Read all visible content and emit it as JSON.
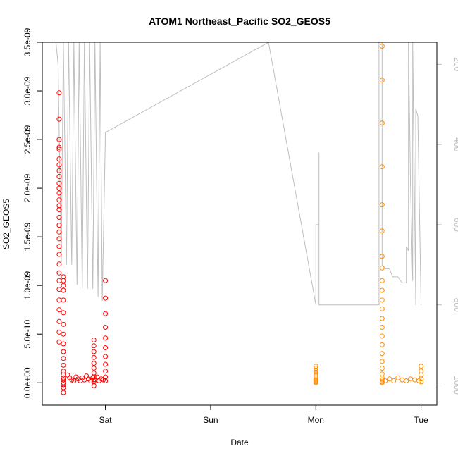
{
  "chart_data": {
    "type": "scatter",
    "title": "ATOM1 Northeast_Pacific SO2_GEOS5",
    "xlabel": "Date",
    "ylabel": "SO2_GEOS5",
    "x_ticks": [
      "Sat",
      "Sun",
      "Mon",
      "Tue"
    ],
    "y_ticks": [
      "0.0e+00",
      "5.0e-10",
      "1.0e-09",
      "1.5e-09",
      "2.0e-09",
      "2.5e-09",
      "3.0e-09",
      "3.5e-09"
    ],
    "y_tick_values": [
      0,
      5e-10,
      1e-09,
      1.5e-09,
      2e-09,
      2.5e-09,
      3e-09,
      3.5e-09
    ],
    "ylim": [
      -2.3e-10,
      3.5e-09
    ],
    "x_domain_days": [
      -0.6,
      3.15
    ],
    "x_tick_days": [
      0,
      1,
      2,
      3
    ],
    "right_axis": {
      "label": "",
      "ticks": [
        "200",
        "400",
        "600",
        "800",
        "1000"
      ],
      "tick_values": [
        200,
        400,
        600,
        800,
        1000
      ],
      "range_top_to_bottom": [
        145,
        1050
      ],
      "color": "#bebebe"
    },
    "colors": {
      "series_red": "#ff0000",
      "series_orange": "#ff8c00",
      "pressure_line": "#bebebe",
      "axis": "#000000"
    },
    "series": [
      {
        "color": "#ff0000",
        "x": [
          -0.44,
          -0.44,
          -0.44,
          -0.44,
          -0.44,
          -0.44,
          -0.44,
          -0.44,
          -0.44,
          -0.44,
          -0.44,
          -0.44,
          -0.44,
          -0.44,
          -0.44,
          -0.44,
          -0.44,
          -0.44,
          -0.44,
          -0.44,
          -0.44,
          -0.44,
          -0.44,
          -0.44,
          -0.44,
          -0.44,
          -0.44,
          -0.44,
          -0.44,
          -0.44,
          -0.4,
          -0.4,
          -0.4,
          -0.4,
          -0.4,
          -0.4,
          -0.4,
          -0.4,
          -0.4,
          -0.4,
          -0.4,
          -0.4,
          -0.4,
          -0.4,
          -0.4,
          -0.4,
          -0.4,
          -0.4,
          -0.4,
          -0.4,
          -0.36,
          -0.34,
          -0.32,
          -0.3,
          -0.28,
          -0.26,
          -0.24,
          -0.22,
          -0.2,
          -0.18,
          -0.16,
          -0.14,
          -0.12,
          -0.1,
          -0.08,
          -0.06,
          -0.04,
          -0.02,
          -0.11,
          -0.11,
          -0.11,
          -0.11,
          -0.11,
          -0.11,
          -0.11,
          -0.11,
          -0.11,
          -0.11,
          -0.11,
          0.0,
          0.0,
          0.0,
          0.0,
          0.0,
          0.0,
          0.0,
          0.0,
          0.0,
          0.0,
          0.0
        ],
        "y": [
          2.98e-09,
          2.71e-09,
          2.5e-09,
          2.42e-09,
          2.4e-09,
          2.3e-09,
          2.24e-09,
          2.18e-09,
          2.12e-09,
          2.05e-09,
          2e-09,
          1.95e-09,
          1.88e-09,
          1.82e-09,
          1.78e-09,
          1.7e-09,
          1.62e-09,
          1.55e-09,
          1.48e-09,
          1.4e-09,
          1.32e-09,
          1.22e-09,
          1.13e-09,
          1.05e-09,
          9.6e-10,
          8.5e-10,
          7.5e-10,
          6.3e-10,
          5.2e-10,
          4.2e-10,
          1.09e-09,
          1.05e-09,
          1e-09,
          9.5e-10,
          8.5e-10,
          7.2e-10,
          6e-10,
          5e-10,
          4e-10,
          3.2e-10,
          2.5e-10,
          1.8e-10,
          1.2e-10,
          8e-11,
          5e-11,
          3e-11,
          0,
          -2e-11,
          -5e-11,
          -1e-10,
          8e-11,
          5e-11,
          3e-11,
          2e-11,
          6e-11,
          4e-11,
          2e-11,
          5e-11,
          3e-11,
          7e-11,
          4e-11,
          2e-11,
          5e-11,
          3e-11,
          6e-11,
          2e-11,
          4e-11,
          3e-11,
          4.4e-10,
          3.8e-10,
          3.2e-10,
          2.6e-10,
          2e-10,
          1.5e-10,
          1e-10,
          6e-11,
          3e-11,
          1e-11,
          -3e-11,
          1.05e-09,
          8.7e-10,
          7.1e-10,
          5.7e-10,
          4.6e-10,
          3.6e-10,
          2.7e-10,
          1.9e-10,
          1.2e-10,
          6e-11,
          2e-11
        ]
      },
      {
        "color": "#ff8c00",
        "x": [
          2.0,
          2.0,
          2.0,
          2.0,
          2.0,
          2.0,
          2.0,
          2.0,
          2.0,
          2.0,
          2.0,
          2.0,
          2.63,
          2.63,
          2.63,
          2.63,
          2.63,
          2.63,
          2.63,
          2.63,
          2.63,
          2.63,
          2.63,
          2.63,
          2.63,
          2.63,
          2.63,
          2.63,
          2.63,
          2.63,
          2.63,
          2.63,
          2.63,
          2.63,
          2.63,
          2.63,
          2.66,
          2.7,
          2.74,
          2.78,
          2.82,
          2.86,
          2.9,
          2.94,
          2.98,
          3.0,
          3.0,
          3.0,
          3.0,
          3.0
        ],
        "y": [
          1.7e-10,
          1.5e-10,
          1.3e-10,
          1.1e-10,
          9e-11,
          7e-11,
          5e-11,
          3e-11,
          1e-11,
          0,
          3e-11,
          2e-11,
          3.46e-09,
          3.11e-09,
          2.67e-09,
          2.22e-09,
          1.83e-09,
          1.56e-09,
          1.3e-09,
          1.18e-09,
          1.05e-09,
          9.5e-10,
          8.5e-10,
          7.6e-10,
          6.6e-10,
          5.7e-10,
          4.8e-10,
          3.9e-10,
          3e-10,
          2.2e-10,
          1.5e-10,
          9e-11,
          5e-11,
          3e-11,
          1e-11,
          0,
          2e-11,
          4e-11,
          2e-11,
          5e-11,
          3e-11,
          2e-11,
          4e-11,
          3e-11,
          2e-11,
          1.7e-10,
          1.2e-10,
          8e-11,
          4e-11,
          1e-11
        ]
      }
    ],
    "pressure_line": {
      "x": [
        -0.47,
        -0.45,
        -0.42,
        -0.4,
        -0.37,
        -0.35,
        -0.32,
        -0.3,
        -0.27,
        -0.25,
        -0.22,
        -0.2,
        -0.17,
        -0.15,
        -0.12,
        -0.1,
        -0.07,
        -0.05,
        -0.03,
        0.0,
        1.55,
        2.0,
        2.0,
        2.0,
        2.03,
        2.03,
        2.03,
        2.6,
        2.6,
        2.63,
        2.63,
        2.66,
        2.7,
        2.73,
        2.78,
        2.82,
        2.86,
        2.86,
        2.88,
        2.88,
        2.9,
        2.92,
        2.92,
        2.95,
        2.95,
        2.97,
        2.97,
        3.0
      ],
      "y": [
        145,
        200,
        700,
        145,
        700,
        145,
        700,
        145,
        750,
        145,
        760,
        145,
        760,
        145,
        760,
        145,
        780,
        145,
        790,
        370,
        145,
        800,
        620,
        600,
        600,
        420,
        800,
        800,
        145,
        145,
        700,
        710,
        710,
        730,
        730,
        745,
        745,
        655,
        665,
        145,
        505,
        740,
        145,
        800,
        310,
        330,
        340,
        800
      ]
    }
  }
}
